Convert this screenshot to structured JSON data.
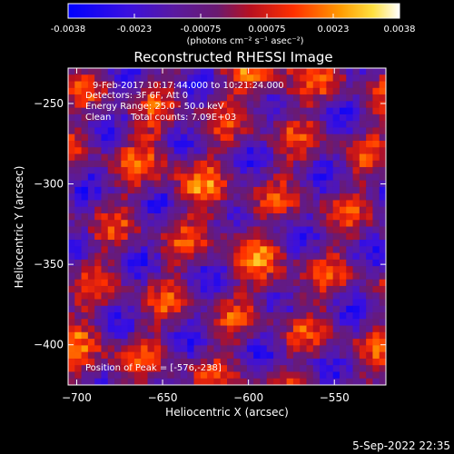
{
  "colorbar": {
    "ticks": [
      "-0.0038",
      "-0.0023",
      "-0.00075",
      "0.00075",
      "0.0023",
      "0.0038"
    ],
    "units_label": "(photons cm⁻² s⁻¹ asec⁻²)"
  },
  "chart_data": {
    "type": "heatmap",
    "title": "Reconstructed RHESSI Image",
    "xlabel": "Heliocentric X (arcsec)",
    "ylabel": "Heliocentric Y (arcsec)",
    "xlim": [
      -705,
      -520
    ],
    "ylim": [
      -425,
      -228
    ],
    "x_ticks": [
      -700,
      -650,
      -600,
      -550
    ],
    "y_ticks": [
      -250,
      -300,
      -350,
      -400
    ],
    "x_tick_labels": [
      "−700",
      "−650",
      "−600",
      "−550"
    ],
    "y_tick_labels": [
      "−250",
      "−300",
      "−350",
      "−400"
    ],
    "colorbar_range": [
      -0.0038,
      0.0038
    ],
    "colormap": "blue-purple-red-orange-yellow-white",
    "grid_size": [
      48,
      48
    ],
    "peak_position": [
      -576,
      -238
    ],
    "annotations": {
      "time": "9-Feb-2017 10:17:44.000 to 10:21:24.000",
      "detectors": "Detectors: 3F 6F, Att 0",
      "energy": "Energy Range: 25.0 - 50.0 keV",
      "clean": "Clean",
      "counts": "Total counts: 7.09E+03",
      "peak": "Position of Peak = [-576,-238]"
    }
  },
  "footer": {
    "timestamp": "5-Sep-2022 22:35"
  }
}
